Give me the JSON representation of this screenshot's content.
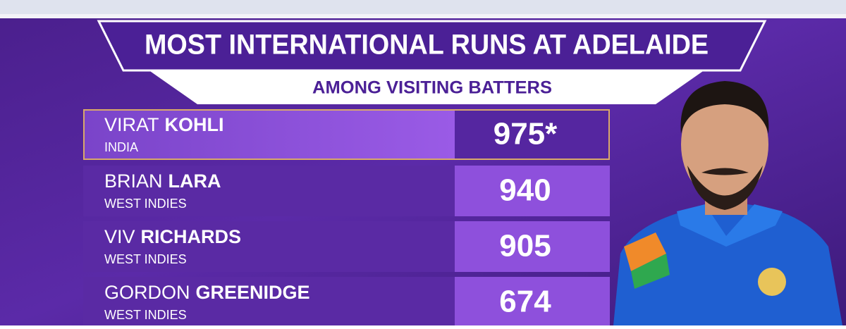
{
  "header": {
    "title": "MOST INTERNATIONAL RUNS AT ADELAIDE",
    "subtitle": "AMONG VISITING BATTERS"
  },
  "table": {
    "rows": [
      {
        "first": "VIRAT",
        "last": "KOHLI",
        "country": "INDIA",
        "runs": "975*"
      },
      {
        "first": "BRIAN",
        "last": "LARA",
        "country": "WEST INDIES",
        "runs": 940
      },
      {
        "first": "VIV",
        "last": "RICHARDS",
        "country": "WEST INDIES",
        "runs": 905
      },
      {
        "first": "GORDON",
        "last": "GREENIDGE",
        "country": "WEST INDIES",
        "runs": 674
      }
    ]
  }
}
